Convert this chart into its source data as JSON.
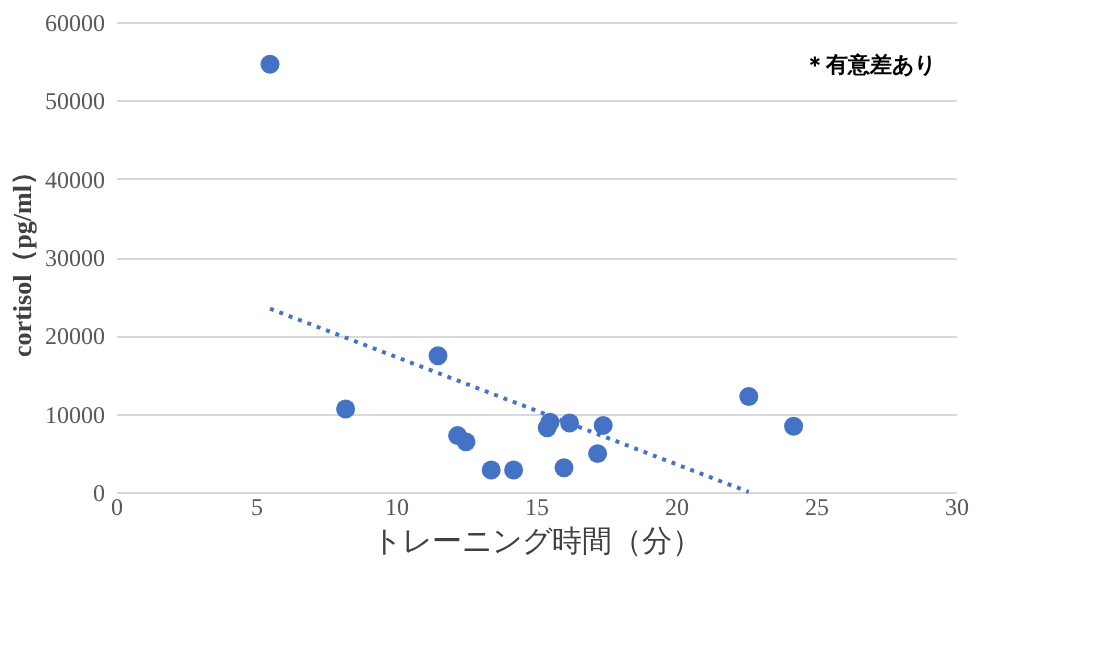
{
  "chart_data": {
    "type": "scatter",
    "xlabel": "トレーニング時間（分）",
    "ylabel": "cortisol（pg/ml）",
    "annotations": [
      "＊有意差あり"
    ],
    "series": [
      {
        "color": "#4472c4",
        "marker": "circle",
        "x": [
          5.5,
          8.2,
          11.5,
          12.2,
          12.5,
          13.4,
          14.2,
          15.4,
          15.5,
          16.2,
          16.0,
          17.4,
          17.2,
          22.6,
          24.2
        ],
        "values": [
          54600,
          10600,
          17400,
          7200,
          6400,
          2800,
          2800,
          8200,
          8900,
          8800,
          3100,
          8500,
          4900,
          12200,
          8400
        ]
      },
      {
        "type": "line",
        "color": "#4472c4",
        "line_style": "dotted",
        "marker": "none",
        "x": [
          5.5,
          22.6
        ],
        "values": [
          23400,
          0
        ]
      }
    ],
    "xlim": [
      0,
      30
    ],
    "xticks": [
      0,
      5,
      10,
      15,
      20,
      25,
      30
    ],
    "ylim": [
      0,
      60000
    ],
    "yticks": [
      0,
      10000,
      20000,
      30000,
      40000,
      50000,
      60000
    ],
    "grid": "y"
  }
}
